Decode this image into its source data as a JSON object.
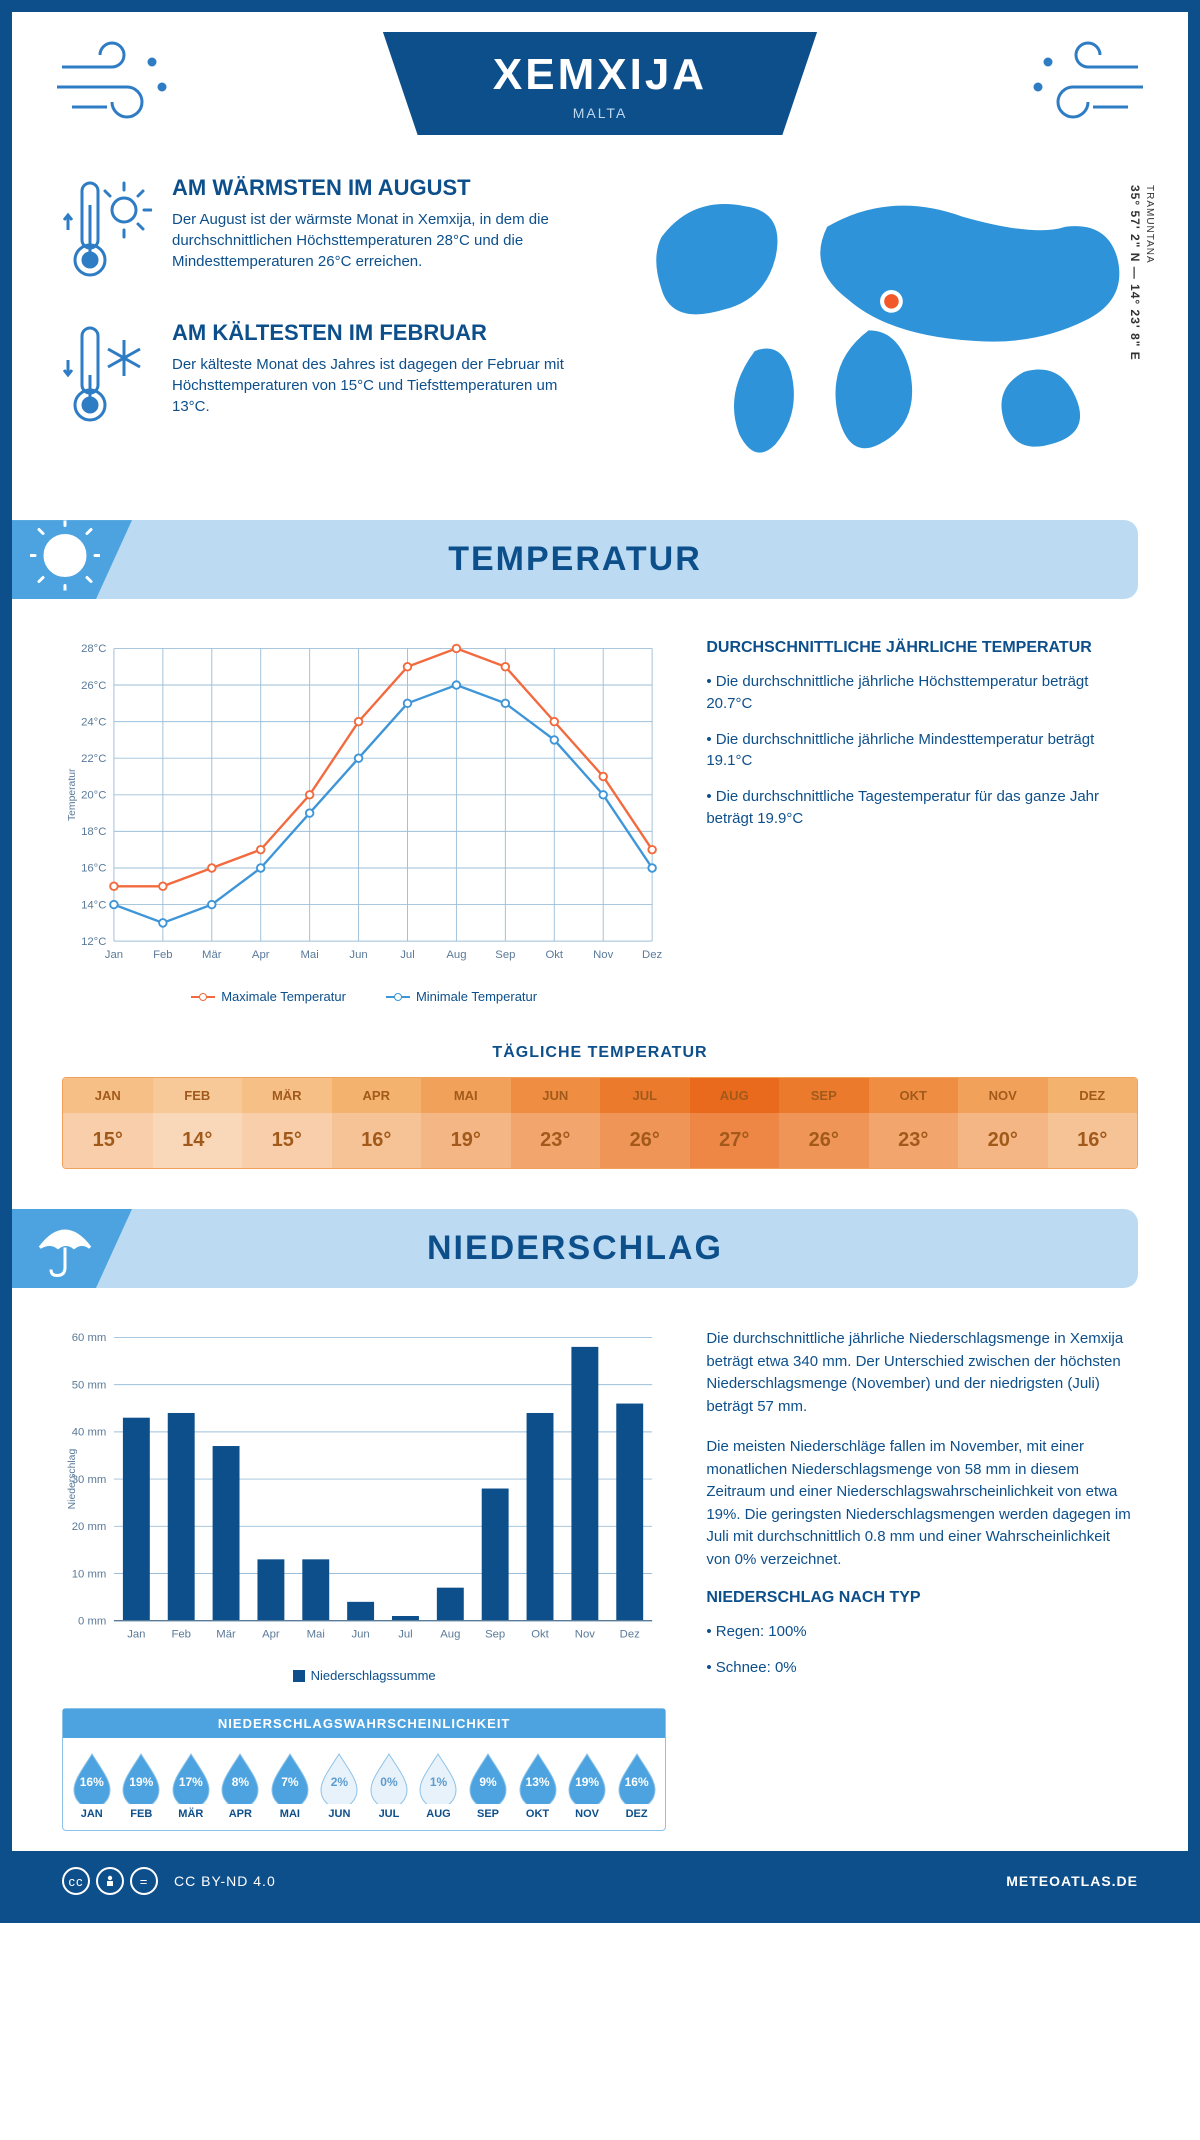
{
  "header": {
    "title": "XEMXIJA",
    "subtitle": "MALTA"
  },
  "coords": "35° 57' 2\" N — 14° 23' 8\" E",
  "coords_sub": "TRAMUNTANA",
  "facts": {
    "warm": {
      "title": "AM WÄRMSTEN IM AUGUST",
      "body": "Der August ist der wärmste Monat in Xemxija, in dem die durchschnittlichen Höchsttemperaturen 28°C und die Mindesttemperaturen 26°C erreichen."
    },
    "cold": {
      "title": "AM KÄLTESTEN IM FEBRUAR",
      "body": "Der kälteste Monat des Jahres ist dagegen der Februar mit Höchsttemperaturen von 15°C und Tiefsttemperaturen um 13°C."
    }
  },
  "temp_section": {
    "heading": "TEMPERATUR",
    "side_title": "DURCHSCHNITTLICHE JÄHRLICHE TEMPERATUR",
    "bullets": [
      "• Die durchschnittliche jährliche Höchsttemperatur beträgt 20.7°C",
      "• Die durchschnittliche jährliche Mindesttemperatur beträgt 19.1°C",
      "• Die durchschnittliche Tagestemperatur für das ganze Jahr beträgt 19.9°C"
    ],
    "chart": {
      "months": [
        "Jan",
        "Feb",
        "Mär",
        "Apr",
        "Mai",
        "Jun",
        "Jul",
        "Aug",
        "Sep",
        "Okt",
        "Nov",
        "Dez"
      ],
      "ymin": 12,
      "ymax": 28,
      "ystep": 2,
      "ylabel": "Temperatur",
      "max_series": [
        15,
        15,
        16,
        17,
        20,
        24,
        27,
        28,
        27,
        24,
        21,
        17
      ],
      "min_series": [
        14,
        13,
        14,
        16,
        19,
        22,
        25,
        26,
        25,
        23,
        20,
        16
      ],
      "max_color": "#f26a3d",
      "min_color": "#3e95d8",
      "grid_color": "#9dbfd9",
      "legend_max": "Maximale Temperatur",
      "legend_min": "Minimale Temperatur"
    },
    "daily_title": "TÄGLICHE TEMPERATUR",
    "daily": {
      "months": [
        "JAN",
        "FEB",
        "MÄR",
        "APR",
        "MAI",
        "JUN",
        "JUL",
        "AUG",
        "SEP",
        "OKT",
        "NOV",
        "DEZ"
      ],
      "values": [
        "15°",
        "14°",
        "15°",
        "16°",
        "19°",
        "23°",
        "26°",
        "27°",
        "26°",
        "23°",
        "20°",
        "16°"
      ],
      "head_colors": [
        "#f6bf86",
        "#f7c999",
        "#f6bf86",
        "#f4b26f",
        "#f2a15a",
        "#ef8e42",
        "#ec7a2d",
        "#e96a1d",
        "#ec7a2d",
        "#ef8e42",
        "#f2a15a",
        "#f4b26f"
      ],
      "body_colors": [
        "#f8ceab",
        "#f9d7b9",
        "#f8ceab",
        "#f6c397",
        "#f4b684",
        "#f2a66d",
        "#f09558",
        "#ee8746",
        "#f09558",
        "#f2a66d",
        "#f4b684",
        "#f6c397"
      ],
      "text_color": "#a25a1b"
    }
  },
  "precip_section": {
    "heading": "NIEDERSCHLAG",
    "chart": {
      "months": [
        "Jan",
        "Feb",
        "Mär",
        "Apr",
        "Mai",
        "Jun",
        "Jul",
        "Aug",
        "Sep",
        "Okt",
        "Nov",
        "Dez"
      ],
      "values": [
        43,
        44,
        37,
        13,
        13,
        4,
        1,
        7,
        28,
        44,
        58,
        46
      ],
      "ymin": 0,
      "ymax": 60,
      "ystep": 10,
      "ylabel": "Niederschlag",
      "bar_color": "#0d4f8b",
      "grid_color": "#9dbfd9",
      "legend": "Niederschlagssumme"
    },
    "para1": "Die durchschnittliche jährliche Niederschlagsmenge in Xemxija beträgt etwa 340 mm. Der Unterschied zwischen der höchsten Niederschlagsmenge (November) und der niedrigsten (Juli) beträgt 57 mm.",
    "para2": "Die meisten Niederschläge fallen im November, mit einer monatlichen Niederschlagsmenge von 58 mm in diesem Zeitraum und einer Niederschlagswahrscheinlichkeit von etwa 19%. Die geringsten Niederschlagsmengen werden dagegen im Juli mit durchschnittlich 0.8 mm und einer Wahrscheinlichkeit von 0% verzeichnet.",
    "type_title": "NIEDERSCHLAG NACH TYP",
    "type_bullets": [
      "• Regen: 100%",
      "• Schnee: 0%"
    ],
    "prob": {
      "title": "NIEDERSCHLAGSWAHRSCHEINLICHKEIT",
      "months": [
        "JAN",
        "FEB",
        "MÄR",
        "APR",
        "MAI",
        "JUN",
        "JUL",
        "AUG",
        "SEP",
        "OKT",
        "NOV",
        "DEZ"
      ],
      "values": [
        16,
        19,
        17,
        8,
        7,
        2,
        0,
        1,
        9,
        13,
        19,
        16
      ],
      "fill_color": "#4ca3e0",
      "low_fill": "#e8f2fa",
      "low_text": "#5e9ccf"
    }
  },
  "footer": {
    "license": "CC BY-ND 4.0",
    "site": "METEOATLAS.DE"
  }
}
